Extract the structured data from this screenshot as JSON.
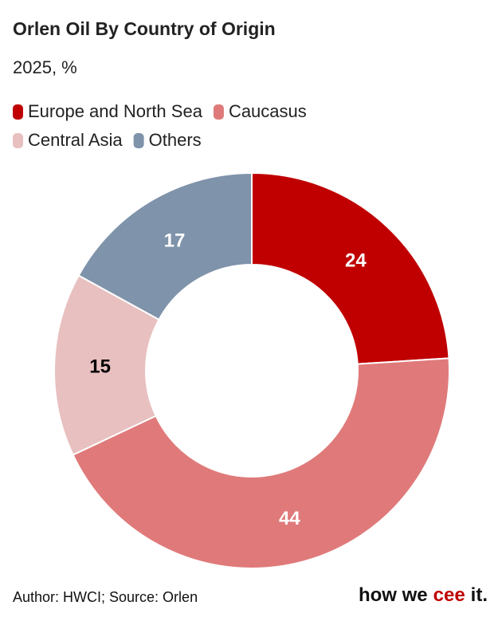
{
  "chart_data": {
    "type": "donut",
    "title": "Orlen Oil By Country of Origin",
    "subtitle": "2025, %",
    "categories": [
      "Europe and North Sea",
      "Caucasus",
      "Central Asia",
      "Others"
    ],
    "values": [
      24,
      44,
      15,
      17
    ],
    "colors": [
      "#c00000",
      "#e07a7a",
      "#e8c0c0",
      "#7f93aa"
    ],
    "label_colors": [
      "#ffffff",
      "#ffffff",
      "#000000",
      "#ffffff"
    ],
    "footer": "Author: HWCI; Source: Orlen",
    "logo": {
      "before": "how we",
      "highlight": "cee",
      "after": "it."
    }
  }
}
